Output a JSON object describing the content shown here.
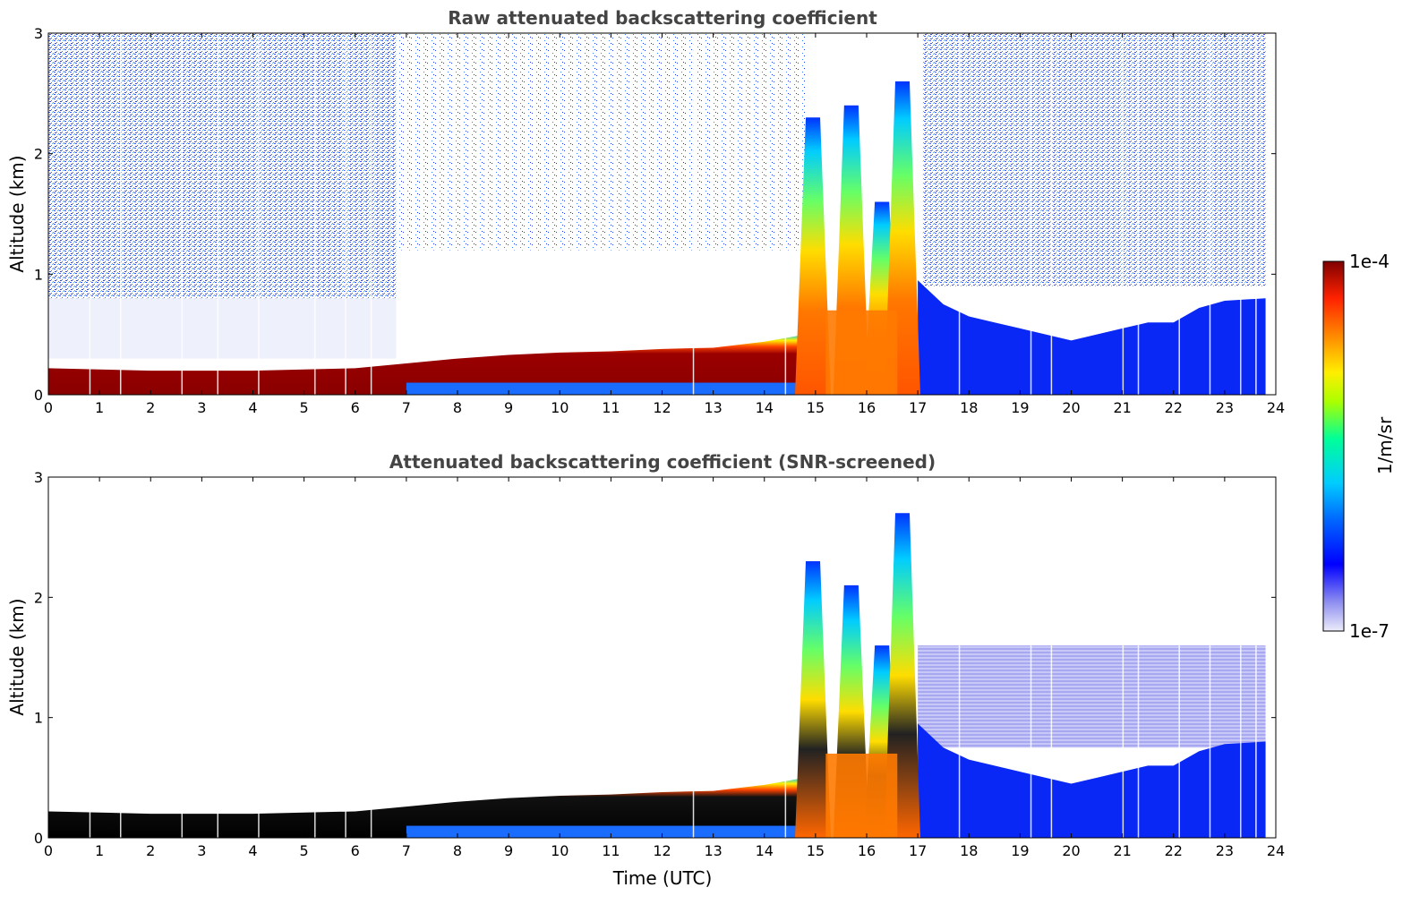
{
  "chart_data": [
    {
      "type": "heatmap",
      "title": "Raw attenuated backscattering coefficient",
      "xlabel": "",
      "ylabel": "Altitude (km)",
      "xlim": [
        0,
        24
      ],
      "ylim": [
        0,
        3
      ],
      "xticks": [
        "0",
        "1",
        "2",
        "3",
        "4",
        "5",
        "6",
        "7",
        "8",
        "9",
        "10",
        "11",
        "12",
        "13",
        "14",
        "15",
        "16",
        "17",
        "18",
        "19",
        "20",
        "21",
        "22",
        "23",
        "24"
      ],
      "yticks": [
        "0",
        "1",
        "2",
        "3"
      ],
      "layer_top_km": [
        [
          0,
          0.22
        ],
        [
          1,
          0.21
        ],
        [
          2,
          0.2
        ],
        [
          3,
          0.2
        ],
        [
          4,
          0.2
        ],
        [
          5,
          0.21
        ],
        [
          6,
          0.22
        ],
        [
          7,
          0.26
        ],
        [
          8,
          0.3
        ],
        [
          9,
          0.33
        ],
        [
          10,
          0.35
        ],
        [
          11,
          0.36
        ],
        [
          12,
          0.38
        ],
        [
          13,
          0.39
        ],
        [
          14,
          0.44
        ],
        [
          14.8,
          0.5
        ]
      ],
      "cloud_columns": [
        {
          "x": 14.95,
          "top_km": 2.3
        },
        {
          "x": 15.7,
          "top_km": 2.4
        },
        {
          "x": 16.3,
          "top_km": 1.6
        },
        {
          "x": 16.7,
          "top_km": 2.6
        }
      ]
    },
    {
      "type": "heatmap",
      "title": "Attenuated backscattering coefficient (SNR-screened)",
      "xlabel": "Time (UTC)",
      "ylabel": "Altitude (km)",
      "xlim": [
        0,
        24
      ],
      "ylim": [
        0,
        3
      ],
      "xticks": [
        "0",
        "1",
        "2",
        "3",
        "4",
        "5",
        "6",
        "7",
        "8",
        "9",
        "10",
        "11",
        "12",
        "13",
        "14",
        "15",
        "16",
        "17",
        "18",
        "19",
        "20",
        "21",
        "22",
        "23",
        "24"
      ],
      "yticks": [
        "0",
        "1",
        "2",
        "3"
      ],
      "layer_top_km": [
        [
          0,
          0.22
        ],
        [
          1,
          0.21
        ],
        [
          2,
          0.2
        ],
        [
          3,
          0.2
        ],
        [
          4,
          0.2
        ],
        [
          5,
          0.21
        ],
        [
          6,
          0.22
        ],
        [
          7,
          0.26
        ],
        [
          8,
          0.3
        ],
        [
          9,
          0.33
        ],
        [
          10,
          0.35
        ],
        [
          11,
          0.36
        ],
        [
          12,
          0.38
        ],
        [
          13,
          0.39
        ],
        [
          14,
          0.44
        ],
        [
          14.8,
          0.5
        ]
      ],
      "cloud_columns": [
        {
          "x": 14.95,
          "top_km": 2.3
        },
        {
          "x": 15.7,
          "top_km": 2.1
        },
        {
          "x": 16.3,
          "top_km": 1.6
        },
        {
          "x": 16.7,
          "top_km": 2.7
        }
      ]
    }
  ],
  "colorbar": {
    "label": "1/m/sr",
    "max_label": "1e-4",
    "min_label": "1e-7",
    "log_scale": true,
    "colors": [
      "#e8e8f8",
      "#9999ee",
      "#0000ff",
      "#00aaff",
      "#00ffaa",
      "#aaff00",
      "#ffee00",
      "#ff8800",
      "#ff2200",
      "#aa0000",
      "#800000"
    ]
  }
}
